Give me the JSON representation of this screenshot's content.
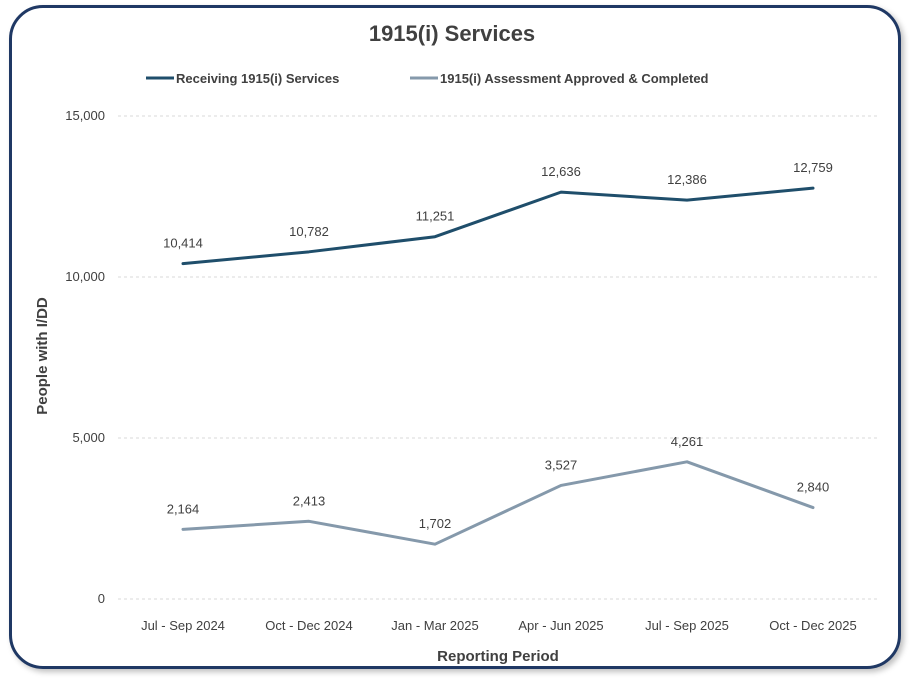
{
  "chart_data": {
    "type": "line",
    "title": "1915(i) Services",
    "xlabel": "Reporting Period",
    "ylabel": "People with I/DD",
    "categories": [
      "Jul - Sep 2024",
      "Oct - Dec 2024",
      "Jan - Mar 2025",
      "Apr - Jun 2025",
      "Jul - Sep 2025",
      "Oct - Dec 2025"
    ],
    "ylim": [
      0,
      15000
    ],
    "yticks": [
      0,
      5000,
      10000,
      15000
    ],
    "ytick_labels": [
      "0",
      "5,000",
      "10,000",
      "15,000"
    ],
    "grid": true,
    "legend_position": "top",
    "series": [
      {
        "name": "Receiving 1915(i) Services",
        "color": "#1f4e6b",
        "values": [
          10414,
          10782,
          11251,
          12636,
          12386,
          12759
        ],
        "labels": [
          "10,414",
          "10,782",
          "11,251",
          "12,636",
          "12,386",
          "12,759"
        ]
      },
      {
        "name": "1915(i) Assessment Approved & Completed",
        "color": "#8599ab",
        "values": [
          2164,
          2413,
          1702,
          3527,
          4261,
          2840
        ],
        "labels": [
          "2,164",
          "2,413",
          "1,702",
          "3,527",
          "4,261",
          "2,840"
        ]
      }
    ]
  }
}
